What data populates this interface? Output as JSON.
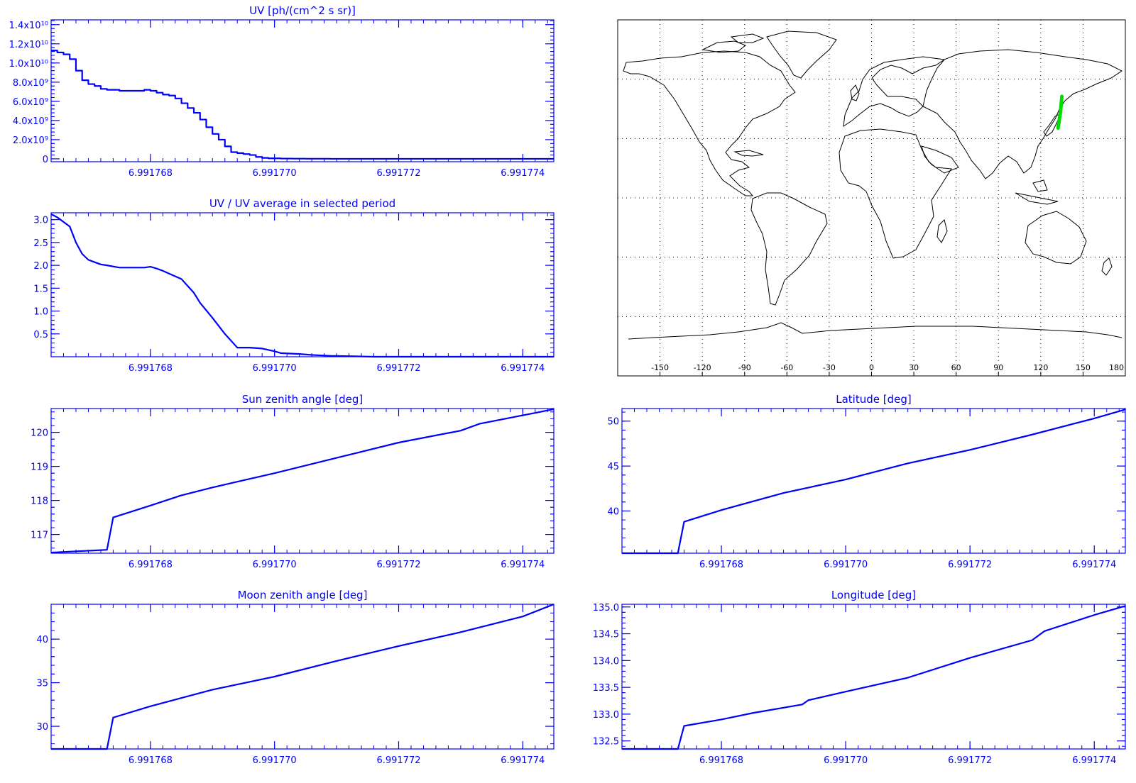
{
  "colors": {
    "axis": "#0000ff",
    "line": "#0000ff",
    "map": "#000000",
    "track": "#00dd00",
    "grid": "#000000"
  },
  "chart_data": [
    {
      "id": "uv",
      "type": "line",
      "step": true,
      "title": "UV [ph/(cm^2 s sr)]",
      "x_ticks": [
        "6.991768",
        "6.991770",
        "6.991772",
        "6.991774"
      ],
      "x_tick_values": [
        6.991768,
        6.99177,
        6.991772,
        6.991774
      ],
      "xlim": [
        6.9917664,
        6.9917745
      ],
      "ylim": [
        -300000000.0,
        14500000000.0
      ],
      "y_ticks": [
        {
          "v": 0,
          "label": "0"
        },
        {
          "v": 2000000000.0,
          "label": "2.0x10⁹"
        },
        {
          "v": 4000000000.0,
          "label": "4.0x10⁹"
        },
        {
          "v": 6000000000.0,
          "label": "6.0x10⁹"
        },
        {
          "v": 8000000000.0,
          "label": "8.0x10⁹"
        },
        {
          "v": 10000000000.0,
          "label": "1.0x10¹⁰"
        },
        {
          "v": 12000000000.0,
          "label": "1.2x10¹⁰"
        },
        {
          "v": 14000000000.0,
          "label": "1.4x10¹⁰"
        }
      ],
      "x": [
        6.9917664,
        6.9917665,
        6.9917666,
        6.9917667,
        6.9917668,
        6.9917669,
        6.991767,
        6.9917671,
        6.9917672,
        6.9917673,
        6.9917674,
        6.9917675,
        6.9917676,
        6.9917677,
        6.9917678,
        6.9917679,
        6.991768,
        6.9917681,
        6.9917682,
        6.9917683,
        6.9917684,
        6.9917685,
        6.9917686,
        6.9917687,
        6.9917688,
        6.9917689,
        6.991769,
        6.9917691,
        6.9917692,
        6.9917693,
        6.9917694,
        6.9917695,
        6.9917696,
        6.9917697,
        6.9917698,
        6.9917699,
        6.99177,
        6.9917701,
        6.9917703,
        6.9917705,
        6.9917707,
        6.9917709,
        6.9917712,
        6.9917715,
        6.9917745
      ],
      "values": [
        11300000000.0,
        11100000000.0,
        10900000000.0,
        10400000000.0,
        9200000000.0,
        8200000000.0,
        7800000000.0,
        7600000000.0,
        7300000000.0,
        7200000000.0,
        7200000000.0,
        7100000000.0,
        7100000000.0,
        7100000000.0,
        7100000000.0,
        7200000000.0,
        7100000000.0,
        6900000000.0,
        6700000000.0,
        6600000000.0,
        6300000000.0,
        5800000000.0,
        5300000000.0,
        4800000000.0,
        4100000000.0,
        3300000000.0,
        2600000000.0,
        2000000000.0,
        1300000000.0,
        700000000.0,
        600000000.0,
        500000000.0,
        400000000.0,
        200000000.0,
        100000000.0,
        50000000.0,
        50000000.0,
        30000000.0,
        20000000.0,
        10000000.0,
        10000000.0,
        0,
        0,
        0,
        0
      ]
    },
    {
      "id": "ratio",
      "type": "line",
      "title": "UV / UV average in selected period",
      "x_ticks": [
        "6.991768",
        "6.991770",
        "6.991772",
        "6.991774"
      ],
      "x_tick_values": [
        6.991768,
        6.99177,
        6.991772,
        6.991774
      ],
      "xlim": [
        6.9917664,
        6.9917745
      ],
      "ylim": [
        0,
        3.15
      ],
      "y_ticks": [
        {
          "v": 0.5,
          "label": "0.5"
        },
        {
          "v": 1.0,
          "label": "1.0"
        },
        {
          "v": 1.5,
          "label": "1.5"
        },
        {
          "v": 2.0,
          "label": "2.0"
        },
        {
          "v": 2.5,
          "label": "2.5"
        },
        {
          "v": 3.0,
          "label": "3.0"
        }
      ],
      "x": [
        6.9917664,
        6.9917665,
        6.9917667,
        6.9917668,
        6.9917669,
        6.991767,
        6.9917672,
        6.9917673,
        6.9917675,
        6.9917677,
        6.9917679,
        6.991768,
        6.9917681,
        6.9917682,
        6.9917683,
        6.9917685,
        6.9917686,
        6.9917687,
        6.9917688,
        6.991769,
        6.9917692,
        6.9917693,
        6.9917694,
        6.9917696,
        6.9917698,
        6.99177,
        6.9917701,
        6.9917704,
        6.9917706,
        6.9917709,
        6.9917713,
        6.9917716,
        6.9917745
      ],
      "values": [
        3.12,
        3.05,
        2.85,
        2.5,
        2.25,
        2.12,
        2.02,
        2.0,
        1.95,
        1.95,
        1.95,
        1.97,
        1.93,
        1.88,
        1.82,
        1.7,
        1.55,
        1.4,
        1.18,
        0.85,
        0.5,
        0.35,
        0.2,
        0.2,
        0.18,
        0.12,
        0.08,
        0.06,
        0.04,
        0.02,
        0.01,
        0,
        0
      ]
    },
    {
      "id": "sun",
      "type": "line",
      "title": "Sun zenith angle [deg]",
      "x_ticks": [
        "6.991768",
        "6.991770",
        "6.991772",
        "6.991774"
      ],
      "x_tick_values": [
        6.991768,
        6.99177,
        6.991772,
        6.991774
      ],
      "xlim": [
        6.9917664,
        6.9917745
      ],
      "ylim": [
        116.45,
        120.7
      ],
      "y_ticks": [
        {
          "v": 117,
          "label": "117"
        },
        {
          "v": 118,
          "label": "118"
        },
        {
          "v": 119,
          "label": "119"
        },
        {
          "v": 120,
          "label": "120"
        }
      ],
      "x": [
        6.9917664,
        6.9917673,
        6.9917674,
        6.991768,
        6.9917685,
        6.991769,
        6.9917694,
        6.99177,
        6.991771,
        6.991772,
        6.991773,
        6.9917733,
        6.991774,
        6.9917745
      ],
      "values": [
        116.47,
        116.55,
        117.5,
        117.85,
        118.15,
        118.38,
        118.55,
        118.8,
        119.25,
        119.7,
        120.05,
        120.25,
        120.5,
        120.68
      ]
    },
    {
      "id": "moon",
      "type": "line",
      "title": "Moon zenith angle [deg]",
      "x_ticks": [
        "6.991768",
        "6.991770",
        "6.991772",
        "6.991774"
      ],
      "x_tick_values": [
        6.991768,
        6.99177,
        6.991772,
        6.991774
      ],
      "xlim": [
        6.9917664,
        6.9917745
      ],
      "ylim": [
        27.4,
        44
      ],
      "y_ticks": [
        {
          "v": 30,
          "label": "30"
        },
        {
          "v": 35,
          "label": "35"
        },
        {
          "v": 40,
          "label": "40"
        }
      ],
      "x": [
        6.9917664,
        6.9917673,
        6.9917674,
        6.991768,
        6.991769,
        6.99177,
        6.991771,
        6.991772,
        6.991773,
        6.991774,
        6.9917745
      ],
      "values": [
        27.4,
        27.4,
        31.0,
        32.3,
        34.2,
        35.7,
        37.5,
        39.2,
        40.8,
        42.6,
        44.0
      ]
    },
    {
      "id": "lat",
      "type": "line",
      "title": "Latitude [deg]",
      "x_ticks": [
        "6.991768",
        "6.991770",
        "6.991772",
        "6.991774"
      ],
      "x_tick_values": [
        6.991768,
        6.99177,
        6.991772,
        6.991774
      ],
      "xlim": [
        6.9917664,
        6.9917745
      ],
      "ylim": [
        35.3,
        51.4
      ],
      "y_ticks": [
        {
          "v": 40,
          "label": "40"
        },
        {
          "v": 45,
          "label": "45"
        },
        {
          "v": 50,
          "label": "50"
        }
      ],
      "x": [
        6.9917664,
        6.9917673,
        6.9917674,
        6.991768,
        6.991769,
        6.99177,
        6.991771,
        6.991772,
        6.991773,
        6.991774,
        6.9917745
      ],
      "values": [
        35.3,
        35.3,
        38.8,
        40.1,
        42.0,
        43.5,
        45.3,
        46.8,
        48.5,
        50.3,
        51.3
      ]
    },
    {
      "id": "lon",
      "type": "line",
      "title": "Longitude [deg]",
      "x_ticks": [
        "6.991768",
        "6.991770",
        "6.991772",
        "6.991774"
      ],
      "x_tick_values": [
        6.991768,
        6.99177,
        6.991772,
        6.991774
      ],
      "xlim": [
        6.9917664,
        6.9917745
      ],
      "ylim": [
        132.35,
        135.05
      ],
      "y_ticks": [
        {
          "v": 132.5,
          "label": "132.5"
        },
        {
          "v": 133.0,
          "label": "133.0"
        },
        {
          "v": 133.5,
          "label": "133.5"
        },
        {
          "v": 134.0,
          "label": "134.0"
        },
        {
          "v": 134.5,
          "label": "134.5"
        },
        {
          "v": 135.0,
          "label": "135.0"
        }
      ],
      "x": [
        6.9917664,
        6.9917673,
        6.9917674,
        6.991768,
        6.9917685,
        6.9917693,
        6.9917694,
        6.99177,
        6.991771,
        6.991772,
        6.991773,
        6.9917732,
        6.991774,
        6.9917745
      ],
      "values": [
        132.35,
        132.35,
        132.78,
        132.9,
        133.02,
        133.18,
        133.26,
        133.42,
        133.68,
        134.05,
        134.38,
        134.55,
        134.85,
        135.02
      ]
    },
    {
      "id": "map",
      "type": "map",
      "x_ticks": [
        "-150",
        "-120",
        "-90",
        "-60",
        "-30",
        "0",
        "30",
        "60",
        "90",
        "120",
        "150",
        "180"
      ],
      "x_tick_values": [
        -150,
        -120,
        -90,
        -60,
        -30,
        0,
        30,
        60,
        90,
        120,
        150,
        180
      ],
      "xlim": [
        -180,
        180
      ],
      "ylim": [
        -90,
        90
      ],
      "grid_lon": [
        -150,
        -120,
        -90,
        -60,
        -30,
        0,
        30,
        60,
        90,
        120,
        150
      ],
      "grid_lat": [
        -60,
        -30,
        0,
        30,
        60
      ],
      "track": {
        "lon": [
          132.3,
          134.0,
          135.0
        ],
        "lat": [
          35.3,
          43.5,
          51.3
        ]
      }
    }
  ]
}
